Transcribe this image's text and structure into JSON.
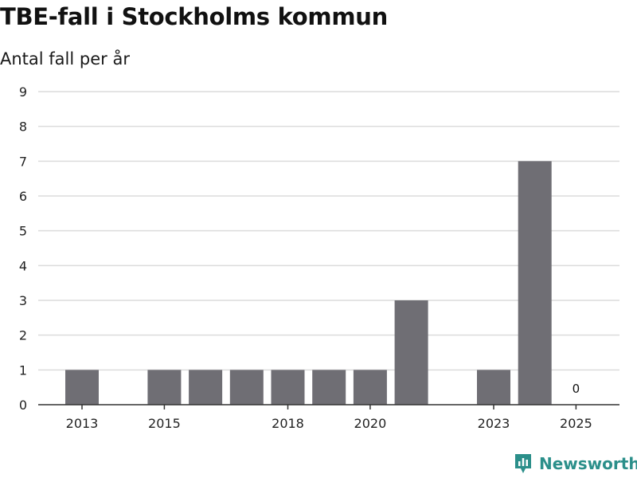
{
  "header": {
    "title": "TBE-fall i Stockholms kommun",
    "subtitle": "Antal fall per år"
  },
  "brand": {
    "name": "Newsworthy"
  },
  "colors": {
    "bar": "#6f6e74",
    "grid": "#dcdcdc",
    "axis": "#333333",
    "brand": "#2b8f8a"
  },
  "chart_data": {
    "type": "bar",
    "title": "TBE-fall i Stockholms kommun",
    "ylabel": "Antal fall per år",
    "xlabel": "",
    "categories": [
      "2013",
      "2014",
      "2015",
      "2016",
      "2017",
      "2018",
      "2019",
      "2020",
      "2021",
      "2022",
      "2023",
      "2024",
      "2025"
    ],
    "values": [
      1,
      0,
      1,
      1,
      1,
      1,
      1,
      1,
      3,
      0,
      1,
      7,
      0
    ],
    "x_tick_labels": [
      "2013",
      "2015",
      "2018",
      "2020",
      "2023",
      "2025"
    ],
    "yticks": [
      0,
      1,
      2,
      3,
      4,
      5,
      6,
      7,
      8,
      9
    ],
    "ylim": [
      0,
      9
    ],
    "grid": true,
    "data_labels": [
      {
        "category": "2025",
        "text": "0"
      }
    ]
  }
}
